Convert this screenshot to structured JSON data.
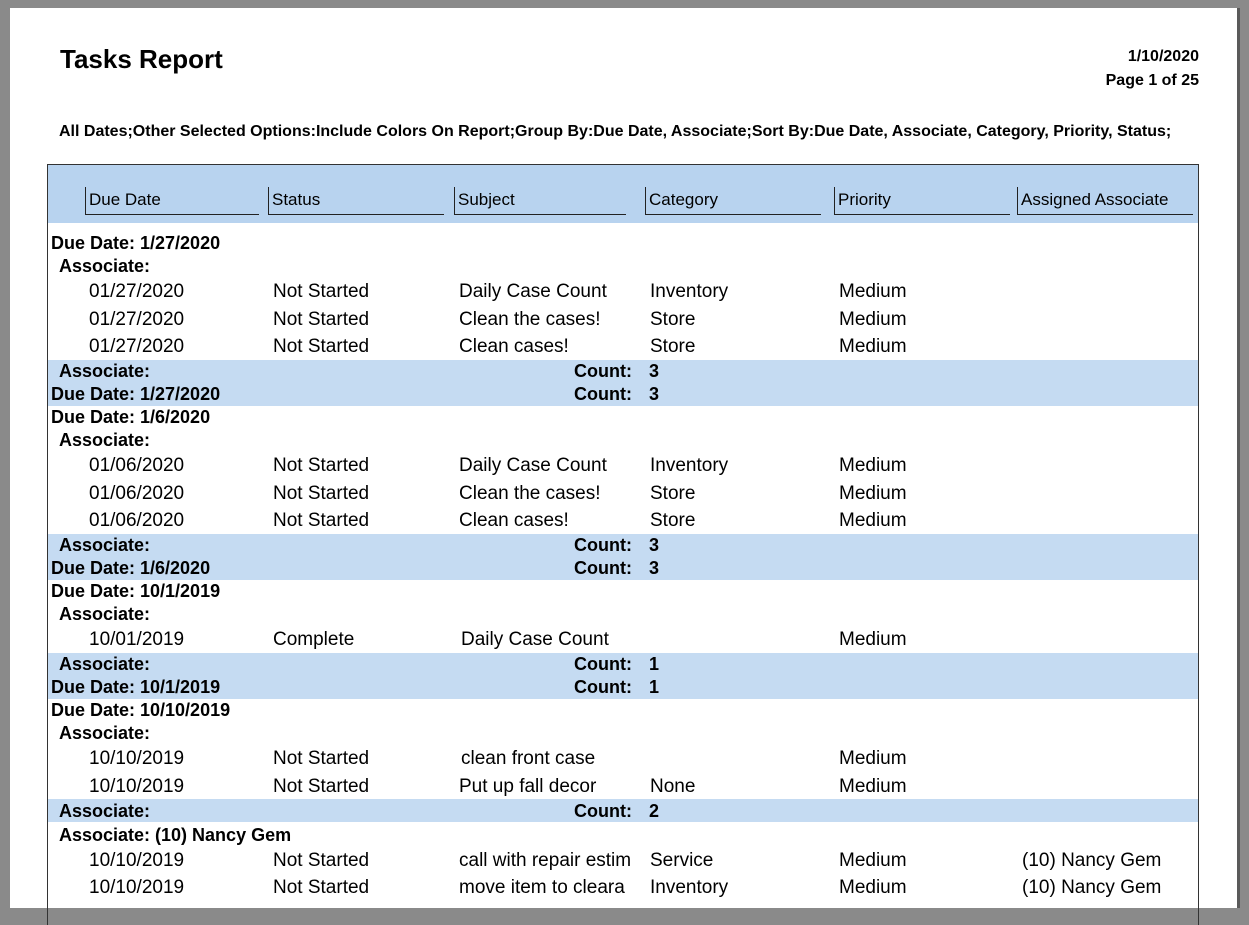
{
  "header": {
    "title": "Tasks Report",
    "date": "1/10/2020",
    "page": "Page 1 of 25"
  },
  "options": "All Dates;Other Selected Options:Include Colors On Report;Group By:Due Date, Associate;Sort By:Due Date, Associate, Category, Priority, Status;",
  "columns": [
    "Due Date",
    "Status",
    "Subject",
    "Category",
    "Priority",
    "Assigned Associate"
  ],
  "groups": [
    {
      "label": "Due Date: 1/27/2020",
      "associates": [
        {
          "label": "Associate:",
          "rows": [
            {
              "due": "01/27/2020",
              "status": "Not Started",
              "subject": "Daily Case Count",
              "category": "Inventory",
              "priority": "Medium"
            },
            {
              "due": "01/27/2020",
              "status": "Not Started",
              "subject": "Clean the cases!",
              "category": "Store",
              "priority": "Medium"
            },
            {
              "due": "01/27/2020",
              "status": "Not Started",
              "subject": "Clean cases!",
              "category": "Store",
              "priority": "Medium"
            }
          ],
          "footer": {
            "label": "Associate:",
            "count_label": "Count:",
            "count": 3
          }
        }
      ],
      "footer": {
        "label": "Due Date: 1/27/2020",
        "count_label": "Count:",
        "count": 3
      }
    },
    {
      "label": "Due Date: 1/6/2020",
      "associates": [
        {
          "label": "Associate:",
          "rows": [
            {
              "due": "01/06/2020",
              "status": "Not Started",
              "subject": "Daily Case Count",
              "category": "Inventory",
              "priority": "Medium"
            },
            {
              "due": "01/06/2020",
              "status": "Not Started",
              "subject": "Clean the cases!",
              "category": "Store",
              "priority": "Medium"
            },
            {
              "due": "01/06/2020",
              "status": "Not Started",
              "subject": "Clean cases!",
              "category": "Store",
              "priority": "Medium"
            }
          ],
          "footer": {
            "label": "Associate:",
            "count_label": "Count:",
            "count": 3
          }
        }
      ],
      "footer": {
        "label": "Due Date: 1/6/2020",
        "count_label": "Count:",
        "count": 3
      }
    },
    {
      "label": "Due Date: 10/1/2019",
      "associates": [
        {
          "label": "Associate:",
          "rows": [
            {
              "due": "10/01/2019",
              "status": "Complete",
              "subject": "Daily Case Count",
              "priority": "Medium"
            }
          ],
          "footer": {
            "label": "Associate:",
            "count_label": "Count:",
            "count": 1
          }
        }
      ],
      "footer": {
        "label": "Due Date: 10/1/2019",
        "count_label": "Count:",
        "count": 1
      }
    },
    {
      "label": "Due Date: 10/10/2019",
      "associates": [
        {
          "label": "Associate:",
          "rows": [
            {
              "due": "10/10/2019",
              "status": "Not Started",
              "subject": "clean front case",
              "priority": "Medium"
            },
            {
              "due": "10/10/2019",
              "status": "Not Started",
              "subject": "Put up fall decor",
              "category": "None",
              "priority": "Medium"
            }
          ],
          "footer": {
            "label": "Associate:",
            "count_label": "Count:",
            "count": 2
          }
        },
        {
          "label": "Associate: (10) Nancy Gem",
          "rows": [
            {
              "due": "10/10/2019",
              "status": "Not Started",
              "subject": "call with repair estim",
              "category": "Service",
              "priority": "Medium",
              "associate": "(10) Nancy Gem"
            },
            {
              "due": "10/10/2019",
              "status": "Not Started",
              "subject": "move item to cleara",
              "category": "Inventory",
              "priority": "Medium",
              "associate": "(10) Nancy Gem"
            }
          ]
        }
      ]
    }
  ]
}
